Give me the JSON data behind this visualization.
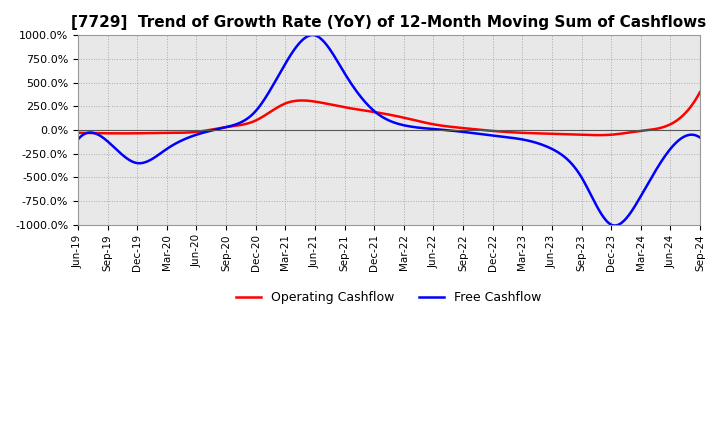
{
  "title": "[7729]  Trend of Growth Rate (YoY) of 12-Month Moving Sum of Cashflows",
  "title_fontsize": 11,
  "ylim": [
    -1000,
    1000
  ],
  "yticks": [
    1000,
    750,
    500,
    250,
    0,
    -250,
    -500,
    -750,
    -1000
  ],
  "ytick_labels": [
    "1000.0%",
    "750.0%",
    "500.0%",
    "250.0%",
    "0.0%",
    "-250.0%",
    "-500.0%",
    "-750.0%",
    "-1000.0%"
  ],
  "x_labels": [
    "Jun-19",
    "Sep-19",
    "Dec-19",
    "Mar-20",
    "Jun-20",
    "Sep-20",
    "Dec-20",
    "Mar-21",
    "Jun-21",
    "Sep-21",
    "Dec-21",
    "Mar-22",
    "Jun-22",
    "Sep-22",
    "Dec-22",
    "Mar-23",
    "Jun-23",
    "Sep-23",
    "Dec-23",
    "Mar-24",
    "Jun-24",
    "Sep-24"
  ],
  "operating_color": "#ff0000",
  "free_color": "#0000ff",
  "background_color": "#ffffff",
  "plot_bg_color": "#e8e8e8",
  "grid_color": "#aaaaaa",
  "legend_loc": "lower center",
  "operating_cashflow": [
    -30,
    -35,
    -35,
    -30,
    -20,
    30,
    100,
    280,
    300,
    240,
    190,
    130,
    60,
    20,
    -10,
    -30,
    -40,
    -50,
    -50,
    -10,
    60,
    400
  ],
  "free_cashflow": [
    -100,
    -120,
    -350,
    -200,
    -50,
    30,
    200,
    700,
    1000,
    600,
    200,
    50,
    10,
    -20,
    -60,
    -100,
    -200,
    -500,
    -1000,
    -700,
    -200,
    -80
  ]
}
